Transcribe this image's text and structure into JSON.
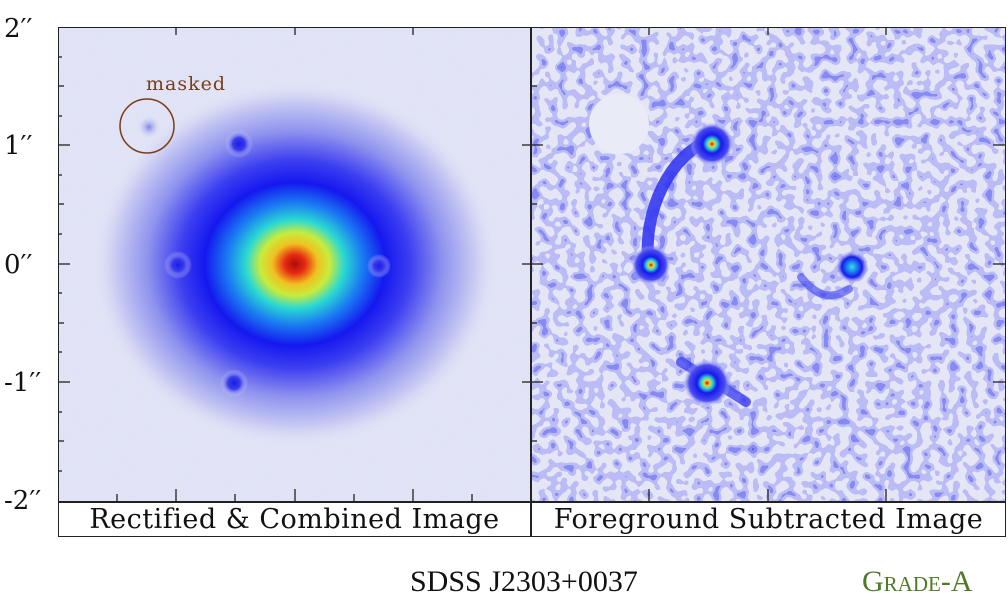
{
  "figure": {
    "y_axis_labels": [
      "2′′",
      "1′′",
      "0′′",
      "-1′′",
      "-2′′"
    ],
    "left_panel": {
      "caption": "Rectified & Combined Image",
      "annotation": "masked"
    },
    "right_panel": {
      "caption": "Foreground Subtracted Image"
    },
    "object_name": "SDSS J2303+0037",
    "grade": "Grade-A",
    "colors": {
      "background_pixel": "#e6e8f6",
      "low": "#3d3df0",
      "mid_cyan": "#25d6d6",
      "mid_yellow": "#f2f238",
      "peak": "#c21010",
      "annotation": "#7a3d14",
      "grade": "#4e7a2a"
    }
  }
}
